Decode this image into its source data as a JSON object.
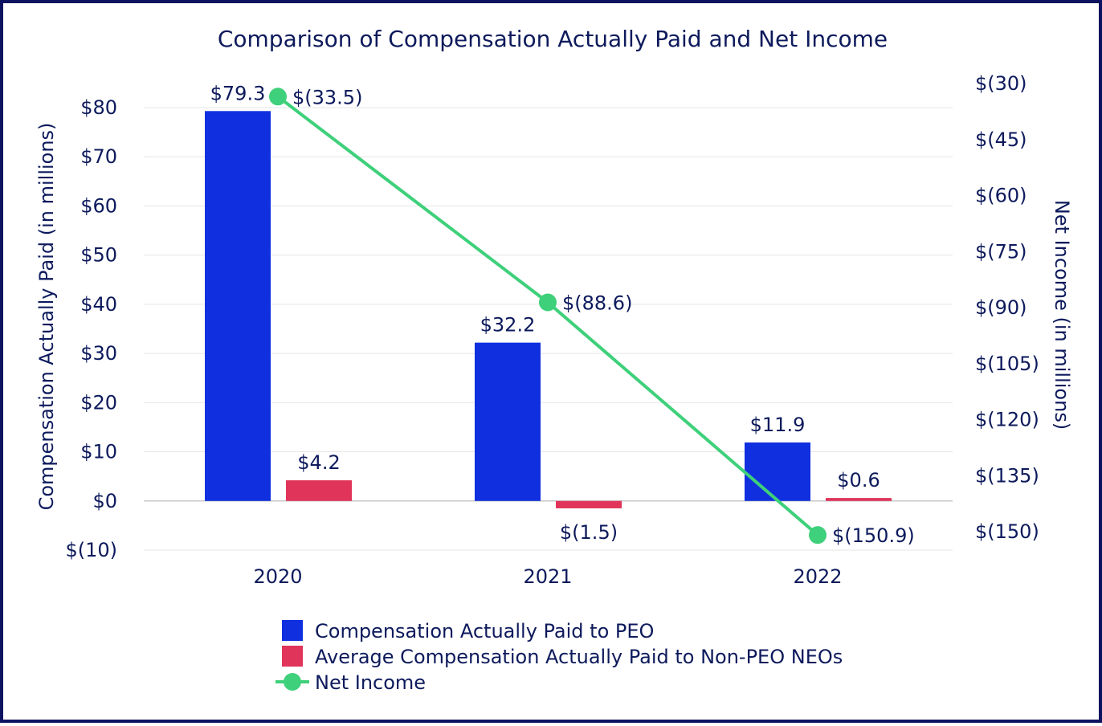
{
  "chart_data": {
    "type": "bar",
    "title": "Comparison of Compensation Actually Paid and Net Income",
    "categories": [
      "2020",
      "2021",
      "2022"
    ],
    "ylabel": "Compensation Actually Paid (in millions)",
    "y2label": "Net Income (in millions)",
    "ylim": [
      -10,
      85
    ],
    "y2lim": [
      -150,
      -30
    ],
    "yticks": [
      -10,
      0,
      10,
      20,
      30,
      40,
      50,
      60,
      70,
      80
    ],
    "yticklabels": [
      "$(10)",
      "$0",
      "$10",
      "$20",
      "$30",
      "$40",
      "$50",
      "$60",
      "$70",
      "$80"
    ],
    "y2ticks": [
      -30,
      -45,
      -60,
      -75,
      -90,
      -105,
      -120,
      -135,
      -150
    ],
    "y2ticklabels": [
      "$(30)",
      "$(45)",
      "$(60)",
      "$(75)",
      "$(90)",
      "$(105)",
      "$(120)",
      "$(135)",
      "$(150)"
    ],
    "grid": true,
    "legend_position": "bottom",
    "series": [
      {
        "name": "Compensation Actually Paid to PEO",
        "type": "bar",
        "axis": "left",
        "color": "#1030e0",
        "values": [
          79.3,
          32.2,
          11.9
        ],
        "labels": [
          "$79.3",
          "$32.2",
          "$11.9"
        ]
      },
      {
        "name": "Average Compensation Actually Paid to Non-PEO NEOs",
        "type": "bar",
        "axis": "left",
        "color": "#e0345a",
        "values": [
          4.2,
          -1.5,
          0.6
        ],
        "labels": [
          "$4.2",
          "$(1.5)",
          "$0.6"
        ]
      },
      {
        "name": "Net Income",
        "type": "line",
        "axis": "right",
        "color": "#3ed07a",
        "values": [
          -33.5,
          -88.6,
          -150.9
        ],
        "labels": [
          "$(33.5)",
          "$(88.6)",
          "$(150.9)"
        ]
      }
    ]
  }
}
